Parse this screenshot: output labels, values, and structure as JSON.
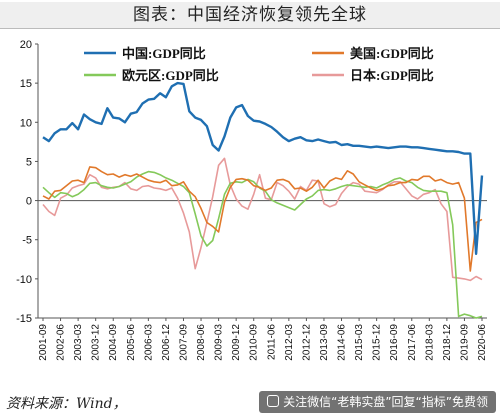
{
  "title": "图表：中国经济恢复领先全球",
  "source": "资料来源：Wind，",
  "promo": "关注微信“老韩实盘”回复“指标”免费领",
  "chart_data": {
    "type": "line",
    "ylim": [
      -15,
      20
    ],
    "yticks": [
      -15,
      -10,
      -5,
      0,
      5,
      10,
      15,
      20
    ],
    "grid": false,
    "legend": "top, two columns",
    "xticks": [
      "2001-09",
      "2002-06",
      "2003-03",
      "2003-12",
      "2004-09",
      "2005-06",
      "2006-03",
      "2006-12",
      "2007-09",
      "2008-06",
      "2009-03",
      "2009-12",
      "2010-09",
      "2011-06",
      "2012-03",
      "2012-12",
      "2013-09",
      "2014-06",
      "2015-03",
      "2015-12",
      "2016-09",
      "2017-06",
      "2018-03",
      "2018-12",
      "2019-09",
      "2020-06"
    ],
    "quarter_start": "2001-09",
    "series": [
      {
        "name": "中国:GDP同比",
        "color": "#1f6fb2",
        "width": 2.4,
        "values": [
          8.1,
          7.6,
          8.6,
          9.1,
          9.1,
          9.9,
          9.1,
          11.0,
          10.4,
          10.0,
          9.8,
          11.8,
          10.6,
          10.5,
          10.0,
          11.1,
          11.3,
          12.4,
          12.9,
          13.0,
          13.7,
          13.2,
          14.6,
          15.0,
          14.9,
          11.4,
          10.6,
          10.3,
          9.5,
          7.1,
          6.4,
          8.2,
          10.6,
          11.9,
          12.2,
          10.8,
          10.2,
          10.1,
          9.8,
          9.4,
          8.8,
          8.1,
          7.6,
          7.9,
          8.1,
          7.7,
          7.6,
          7.8,
          7.6,
          7.4,
          7.5,
          7.1,
          7.2,
          7.0,
          7.0,
          6.9,
          6.8,
          6.9,
          6.8,
          6.7,
          6.8,
          6.9,
          6.9,
          6.8,
          6.8,
          6.7,
          6.6,
          6.5,
          6.4,
          6.3,
          6.3,
          6.2,
          6.0,
          6.0,
          -6.8,
          3.2
        ]
      },
      {
        "name": "美国:GDP同比",
        "color": "#e1792b",
        "width": 1.6,
        "values": [
          0.6,
          0.2,
          1.2,
          1.3,
          1.9,
          2.5,
          2.6,
          2.3,
          4.3,
          4.2,
          3.7,
          3.3,
          3.4,
          3.0,
          3.3,
          3.1,
          3.4,
          3.0,
          2.6,
          2.4,
          2.3,
          2.6,
          1.9,
          2.0,
          2.4,
          1.2,
          0.5,
          -1.0,
          -2.8,
          -3.3,
          -4.0,
          -0.2,
          1.7,
          2.7,
          2.8,
          2.6,
          1.9,
          1.7,
          1.3,
          1.6,
          2.6,
          2.7,
          2.4,
          1.5,
          1.6,
          1.2,
          1.7,
          2.6,
          1.6,
          2.5,
          2.9,
          2.7,
          3.8,
          3.4,
          2.4,
          2.0,
          1.6,
          1.3,
          1.5,
          1.9,
          2.0,
          2.3,
          2.3,
          2.7,
          2.6,
          3.1,
          3.1,
          2.5,
          2.7,
          2.3,
          2.1,
          2.3,
          0.3,
          -9.0,
          -2.8,
          -2.4
        ]
      },
      {
        "name": "欧元区:GDP同比",
        "color": "#84c95a",
        "width": 1.6,
        "values": [
          1.7,
          1.0,
          0.4,
          1.0,
          0.9,
          0.5,
          0.8,
          1.4,
          2.2,
          2.3,
          1.9,
          1.7,
          1.6,
          1.8,
          2.1,
          2.4,
          3.0,
          3.4,
          3.7,
          3.6,
          3.3,
          2.9,
          2.6,
          2.2,
          1.8,
          1.0,
          -1.7,
          -4.5,
          -5.8,
          -5.1,
          -2.3,
          0.8,
          2.2,
          2.4,
          2.3,
          2.7,
          2.4,
          1.6,
          1.2,
          0.1,
          -0.3,
          -0.6,
          -0.9,
          -1.2,
          -0.5,
          0.2,
          0.6,
          1.3,
          1.4,
          1.3,
          1.5,
          1.8,
          2.0,
          1.9,
          1.8,
          1.7,
          1.8,
          1.6,
          2.0,
          2.3,
          2.7,
          2.9,
          2.5,
          2.3,
          1.7,
          1.3,
          1.2,
          1.2,
          1.2,
          1.0,
          -3.1,
          -14.8,
          -14.5,
          -14.7,
          -15.0,
          -14.8
        ]
      },
      {
        "name": "日本:GDP同比",
        "color": "#e79a9a",
        "width": 1.6,
        "values": [
          -0.5,
          -1.4,
          -1.9,
          0.3,
          0.7,
          1.6,
          1.9,
          2.1,
          3.3,
          2.9,
          1.7,
          1.5,
          1.7,
          1.8,
          2.3,
          1.5,
          1.3,
          1.8,
          1.9,
          1.6,
          1.5,
          1.3,
          1.6,
          0.3,
          -1.6,
          -4.0,
          -8.7,
          -6.0,
          -2.8,
          0.5,
          4.5,
          5.4,
          2.0,
          0.2,
          -0.7,
          -1.1,
          0.8,
          3.3,
          0.3,
          0.1,
          2.3,
          1.9,
          1.2,
          0.2,
          1.8,
          1.3,
          2.6,
          2.5,
          -0.4,
          -0.8,
          -0.5,
          0.9,
          1.8,
          2.3,
          2.1,
          1.2,
          1.1,
          1.0,
          1.4,
          2.0,
          2.4,
          2.4,
          1.5,
          0.6,
          0.2,
          0.8,
          1.0,
          1.4,
          -0.4,
          -1.4,
          -9.8,
          -9.9,
          -10.0,
          -10.2,
          -9.7,
          -10.1
        ]
      }
    ]
  }
}
